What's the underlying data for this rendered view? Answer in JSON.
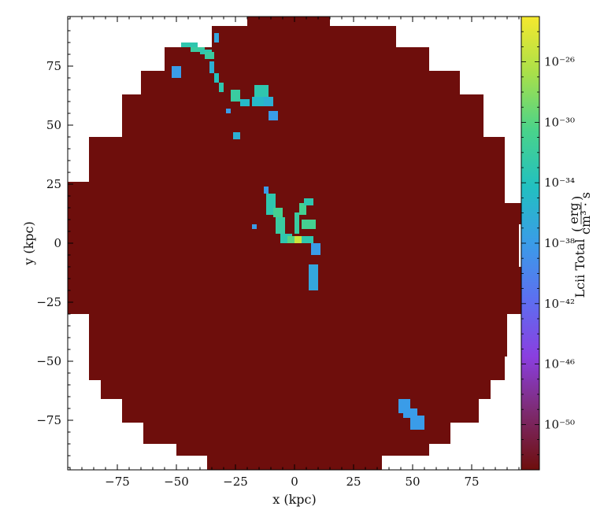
{
  "chart_data": {
    "type": "heatmap",
    "xlabel": "x  (kpc)",
    "ylabel": "y  (kpc)",
    "xlim": [
      -96,
      96
    ],
    "ylim": [
      -96,
      96
    ],
    "x_ticks": [
      -75,
      -50,
      -25,
      0,
      25,
      50,
      75
    ],
    "x_tick_labels": [
      "−75",
      "−50",
      "−25",
      "0",
      "25",
      "50",
      "75"
    ],
    "y_ticks": [
      -75,
      -50,
      -25,
      0,
      25,
      50,
      75
    ],
    "y_tick_labels": [
      "−75",
      "−50",
      "−25",
      "0",
      "25",
      "50",
      "75"
    ],
    "grid": false,
    "background_value_color": "#6e0e0c",
    "outside_color": "#ffffff",
    "colorbar": {
      "label": "Lcii Total",
      "unit_numerator": "erg",
      "unit_denominator": "cm³ · s",
      "scale": "log",
      "range_exponent": [
        -53,
        -23
      ],
      "tick_exponents": [
        -26,
        -30,
        -34,
        -38,
        -42,
        -46,
        -50
      ],
      "tick_labels": [
        "10⁻²⁶",
        "10⁻³⁰",
        "10⁻³⁴",
        "10⁻³⁸",
        "10⁻⁴²",
        "10⁻⁴⁶",
        "10⁻⁵⁰"
      ],
      "colormap": "turbo-like",
      "stops": [
        "#6e0e0c",
        "#7d2a6e",
        "#8a3fe0",
        "#5d6ff0",
        "#3a9ce8",
        "#22c0c0",
        "#4ad38a",
        "#a9e04a",
        "#f5e82e"
      ]
    },
    "domain_outline": [
      {
        "y": 96,
        "x_min": -20,
        "x_max": 15
      },
      {
        "y": 92,
        "x_min": -35,
        "x_max": 43
      },
      {
        "y": 83,
        "x_min": -55,
        "x_max": 57
      },
      {
        "y": 73,
        "x_min": -65,
        "x_max": 70
      },
      {
        "y": 63,
        "x_min": -73,
        "x_max": 80
      },
      {
        "y": 45,
        "x_min": -87,
        "x_max": 89
      },
      {
        "y": 26,
        "x_min": -96,
        "x_max": 89
      },
      {
        "y": 17,
        "x_min": -96,
        "x_max": 96
      },
      {
        "y": 8,
        "x_min": -96,
        "x_max": 95
      },
      {
        "y": -10,
        "x_min": -96,
        "x_max": 96
      },
      {
        "y": -30,
        "x_min": -87,
        "x_max": 90
      },
      {
        "y": -48,
        "x_min": -87,
        "x_max": 89
      },
      {
        "y": -58,
        "x_min": -82,
        "x_max": 83
      },
      {
        "y": -66,
        "x_min": -73,
        "x_max": 78
      },
      {
        "y": -76,
        "x_min": -64,
        "x_max": 66
      },
      {
        "y": -85,
        "x_min": -50,
        "x_max": 57
      },
      {
        "y": -90,
        "x_min": -37,
        "x_max": 37
      },
      {
        "y": -96,
        "x_min": -22,
        "x_max": 28
      }
    ],
    "emission_regions": [
      {
        "x": -48,
        "y": 83,
        "w": 7,
        "h": 2,
        "log_value": -33
      },
      {
        "x": -44,
        "y": 81,
        "w": 6,
        "h": 2,
        "log_value": -32
      },
      {
        "x": -40,
        "y": 80,
        "w": 5,
        "h": 2,
        "log_value": -33
      },
      {
        "x": -38,
        "y": 78,
        "w": 4,
        "h": 3,
        "log_value": -32
      },
      {
        "x": -34,
        "y": 85,
        "w": 2,
        "h": 4,
        "log_value": -37
      },
      {
        "x": -52,
        "y": 70,
        "w": 4,
        "h": 5,
        "log_value": -38
      },
      {
        "x": -36,
        "y": 72,
        "w": 2,
        "h": 5,
        "log_value": -36
      },
      {
        "x": -34,
        "y": 68,
        "w": 2,
        "h": 4,
        "log_value": -34
      },
      {
        "x": -32,
        "y": 64,
        "w": 2,
        "h": 4,
        "log_value": -33
      },
      {
        "x": -27,
        "y": 60,
        "w": 4,
        "h": 5,
        "log_value": -32
      },
      {
        "x": -23,
        "y": 58,
        "w": 4,
        "h": 3,
        "log_value": -35
      },
      {
        "x": -18,
        "y": 58,
        "w": 5,
        "h": 4,
        "log_value": -35
      },
      {
        "x": -17,
        "y": 62,
        "w": 6,
        "h": 5,
        "log_value": -33
      },
      {
        "x": -13,
        "y": 58,
        "w": 4,
        "h": 4,
        "log_value": -36
      },
      {
        "x": -11,
        "y": 52,
        "w": 4,
        "h": 4,
        "log_value": -38
      },
      {
        "x": -29,
        "y": 55,
        "w": 2,
        "h": 2,
        "log_value": -38
      },
      {
        "x": -26,
        "y": 44,
        "w": 3,
        "h": 3,
        "log_value": -36
      },
      {
        "x": -13,
        "y": 21,
        "w": 2,
        "h": 3,
        "log_value": -38
      },
      {
        "x": -12,
        "y": 12,
        "w": 4,
        "h": 9,
        "log_value": -33
      },
      {
        "x": -9,
        "y": 11,
        "w": 4,
        "h": 4,
        "log_value": -31
      },
      {
        "x": -8,
        "y": 4,
        "w": 4,
        "h": 7,
        "log_value": -32
      },
      {
        "x": -6,
        "y": 0,
        "w": 5,
        "h": 4,
        "log_value": -33
      },
      {
        "x": -3,
        "y": 0,
        "w": 5,
        "h": 3,
        "log_value": -30
      },
      {
        "x": 0,
        "y": 0,
        "w": 3,
        "h": 3,
        "log_value": -25
      },
      {
        "x": 3,
        "y": 0,
        "w": 5,
        "h": 3,
        "log_value": -33
      },
      {
        "x": 0,
        "y": 4,
        "w": 2,
        "h": 9,
        "log_value": -32
      },
      {
        "x": 2,
        "y": 12,
        "w": 3,
        "h": 5,
        "log_value": -31
      },
      {
        "x": 4,
        "y": 16,
        "w": 4,
        "h": 3,
        "log_value": -33
      },
      {
        "x": 3,
        "y": 6,
        "w": 6,
        "h": 4,
        "log_value": -31
      },
      {
        "x": 7,
        "y": -5,
        "w": 4,
        "h": 5,
        "log_value": -38
      },
      {
        "x": 6,
        "y": -20,
        "w": 4,
        "h": 11,
        "log_value": -37
      },
      {
        "x": -18,
        "y": 6,
        "w": 2,
        "h": 2,
        "log_value": -38
      },
      {
        "x": 44,
        "y": -72,
        "w": 5,
        "h": 6,
        "log_value": -38
      },
      {
        "x": 46,
        "y": -74,
        "w": 6,
        "h": 4,
        "log_value": -38
      },
      {
        "x": 49,
        "y": -79,
        "w": 6,
        "h": 6,
        "log_value": -38
      }
    ]
  }
}
